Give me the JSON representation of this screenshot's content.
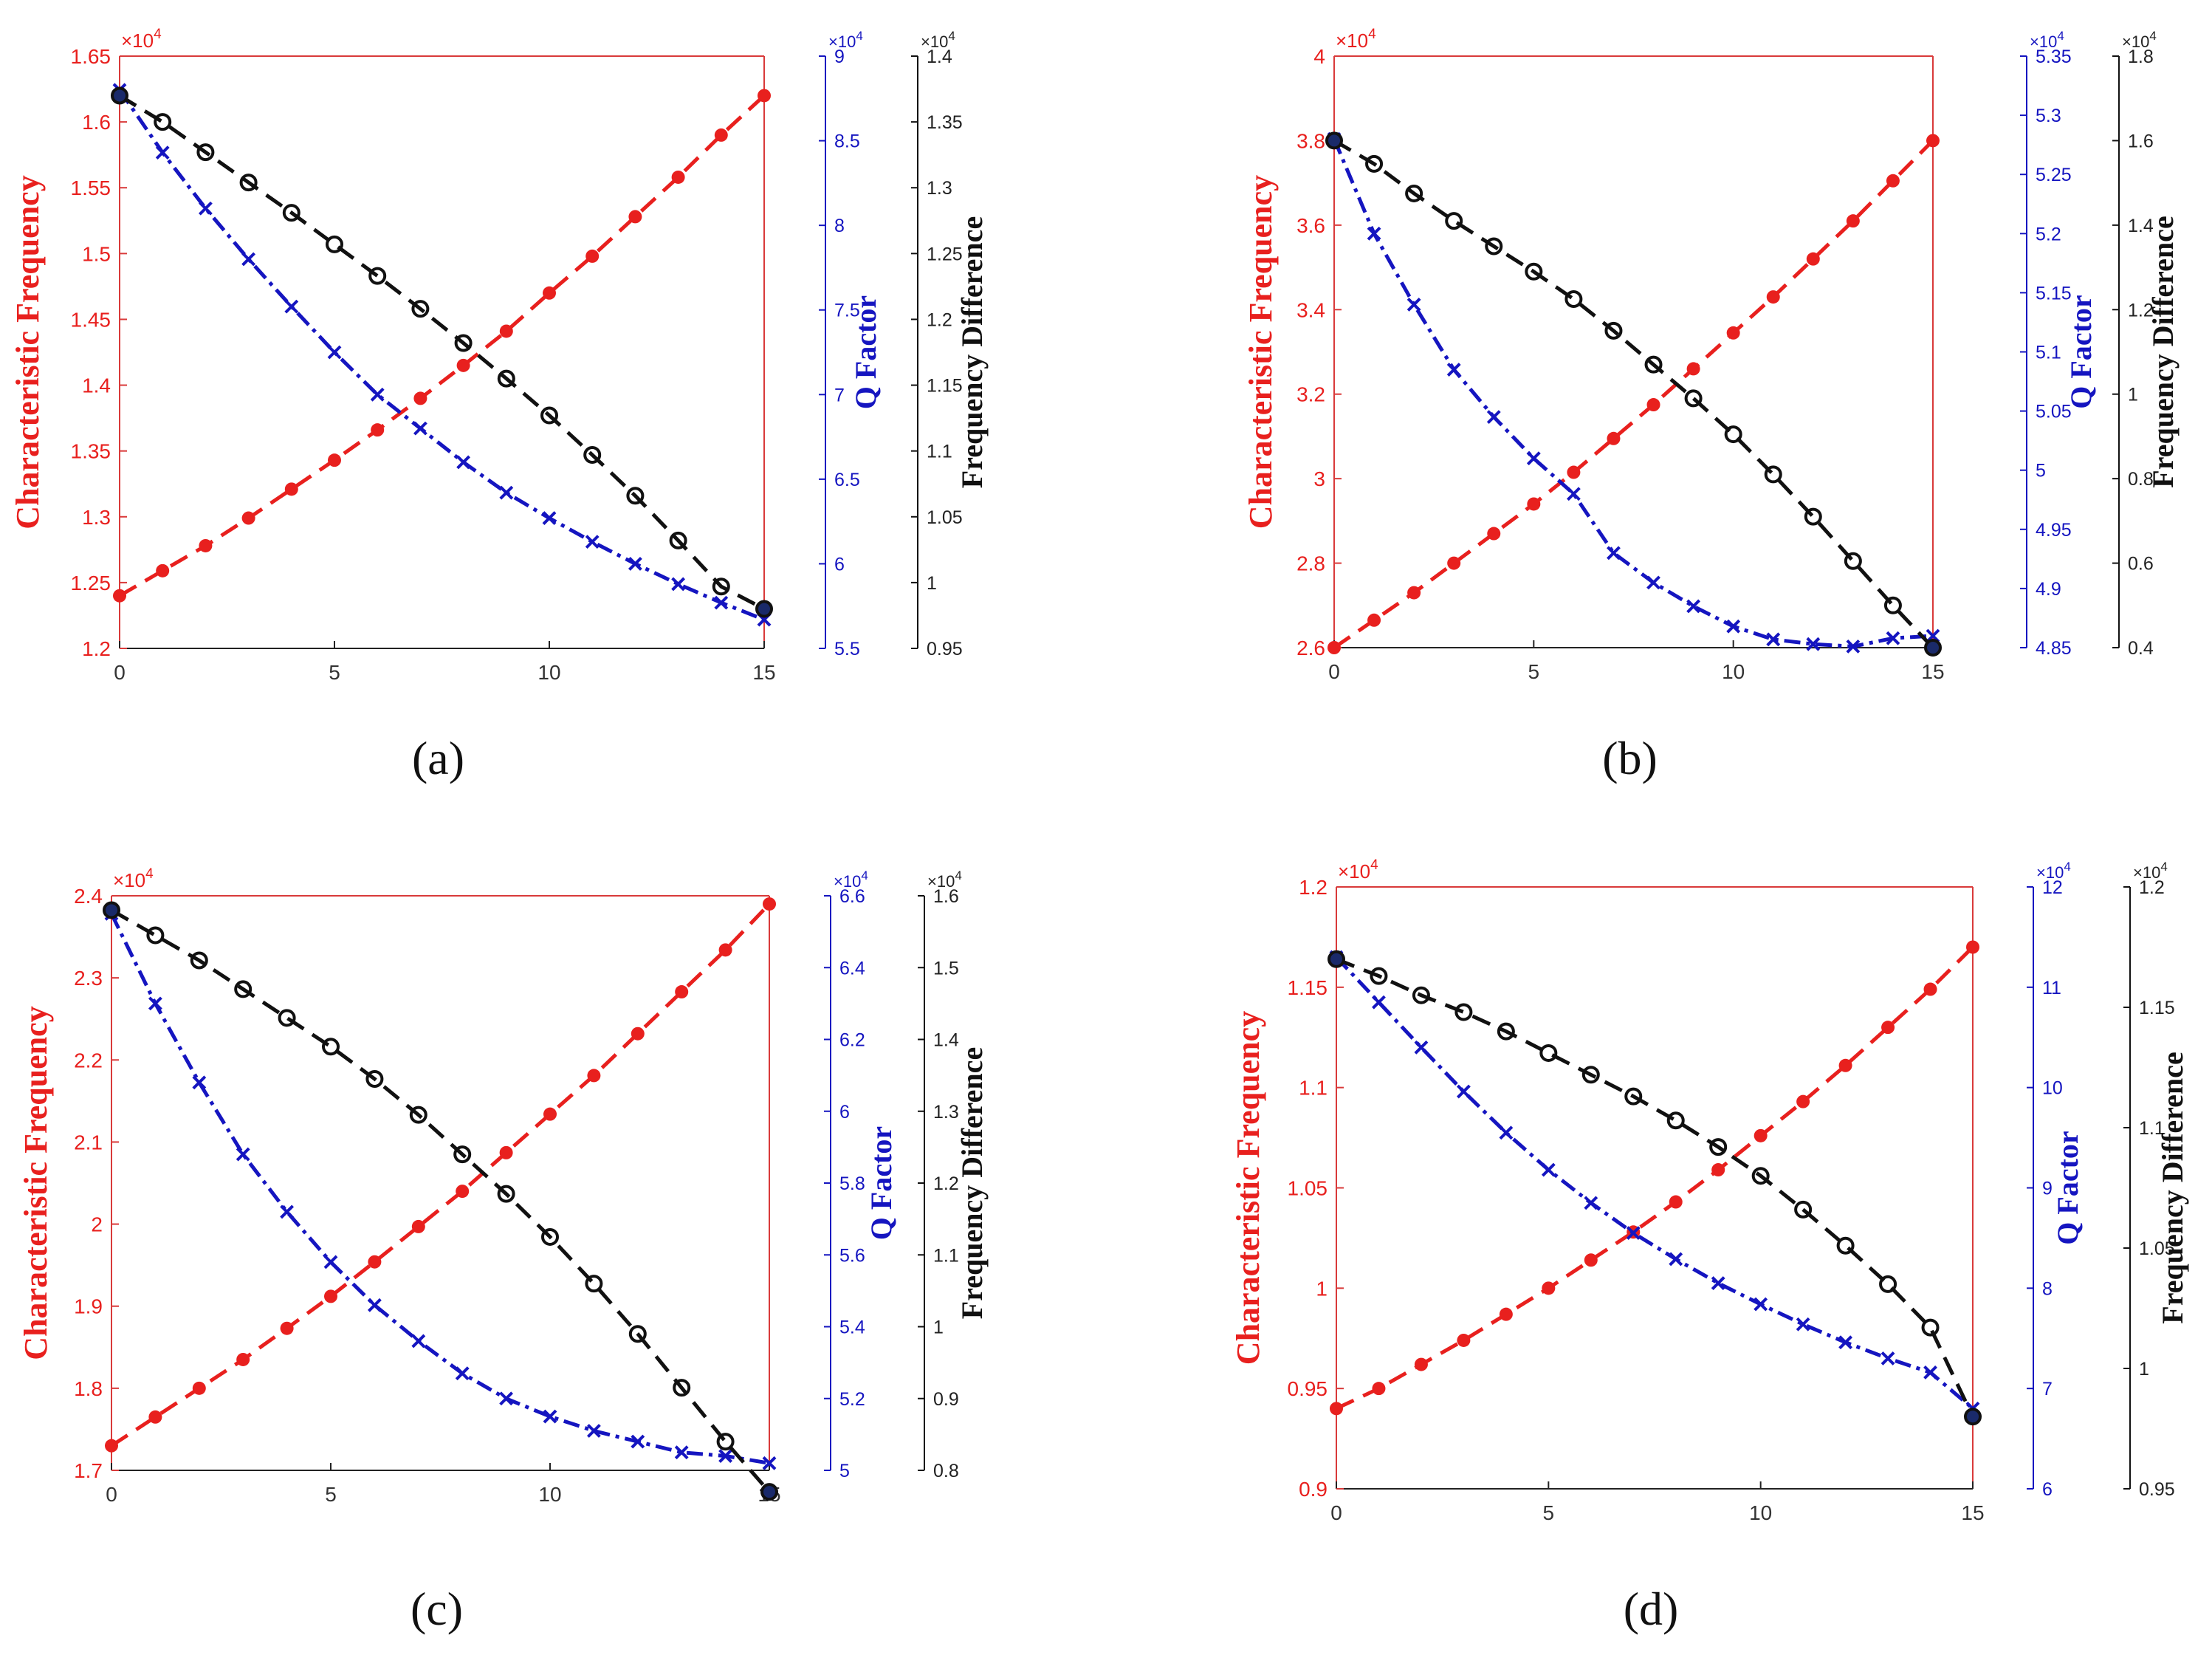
{
  "figure": {
    "colors": {
      "characteristic": "#e8201e",
      "q_factor": "#1515c0",
      "difference": "#111111",
      "frame": "#d93a3a"
    }
  },
  "chart_data": [
    {
      "type": "line",
      "panel_label": "(a)",
      "x": [
        0,
        1,
        2,
        3,
        4,
        5,
        6,
        7,
        8,
        9,
        10,
        11,
        12,
        13,
        14,
        15
      ],
      "x_ticks": [
        "0",
        "5",
        "10",
        "15"
      ],
      "axes": {
        "characteristic": {
          "label": "Characteristic Frequency",
          "exponent": "×10",
          "exponent_power": "4",
          "ylim": [
            1.2,
            1.65
          ],
          "ticks": [
            "1.2",
            "1.25",
            "1.3",
            "1.35",
            "1.4",
            "1.45",
            "1.5",
            "1.55",
            "1.6",
            "1.65"
          ]
        },
        "q_factor": {
          "label": "Q Factor",
          "exponent": "×10",
          "exponent_power": "4",
          "ylim": [
            5.5,
            9
          ],
          "ticks": [
            "5.5",
            "6",
            "6.5",
            "7",
            "7.5",
            "8",
            "8.5",
            "9"
          ]
        },
        "difference": {
          "label": "Frequency Difference",
          "exponent": "×10",
          "exponent_power": "4",
          "ylim": [
            0.95,
            1.4
          ],
          "ticks": [
            "0.95",
            "1",
            "1.05",
            "1.1",
            "1.15",
            "1.2",
            "1.25",
            "1.3",
            "1.35",
            "1.4"
          ]
        }
      },
      "series": [
        {
          "name": "Characteristic Frequency",
          "axis": "characteristic",
          "values": [
            1.24,
            1.259,
            1.278,
            1.299,
            1.321,
            1.343,
            1.366,
            1.39,
            1.415,
            1.441,
            1.47,
            1.498,
            1.528,
            1.558,
            1.59,
            1.62
          ]
        },
        {
          "name": "Q Factor",
          "axis": "q_factor",
          "values": [
            8.8,
            8.43,
            8.1,
            7.8,
            7.52,
            7.25,
            7.0,
            6.8,
            6.6,
            6.42,
            6.27,
            6.13,
            6.0,
            5.88,
            5.77,
            5.67
          ]
        },
        {
          "name": "Frequency Difference",
          "axis": "difference",
          "values": [
            1.37,
            1.35,
            1.327,
            1.304,
            1.281,
            1.257,
            1.233,
            1.208,
            1.182,
            1.155,
            1.127,
            1.097,
            1.066,
            1.032,
            0.997,
            0.98
          ]
        }
      ]
    },
    {
      "type": "line",
      "panel_label": "(b)",
      "x": [
        0,
        1,
        2,
        3,
        4,
        5,
        6,
        7,
        8,
        9,
        10,
        11,
        12,
        13,
        14,
        15
      ],
      "x_ticks": [
        "0",
        "5",
        "10",
        "15"
      ],
      "axes": {
        "characteristic": {
          "label": "Characteristic Frequency",
          "exponent": "×10",
          "exponent_power": "4",
          "ylim": [
            2.6,
            4.0
          ],
          "ticks": [
            "2.6",
            "2.8",
            "3",
            "3.2",
            "3.4",
            "3.6",
            "3.8",
            "4"
          ]
        },
        "q_factor": {
          "label": "Q Factor",
          "exponent": "×10",
          "exponent_power": "4",
          "ylim": [
            4.85,
            5.35
          ],
          "ticks": [
            "4.85",
            "4.9",
            "4.95",
            "5",
            "5.05",
            "5.1",
            "5.15",
            "5.2",
            "5.25",
            "5.3",
            "5.35"
          ]
        },
        "difference": {
          "label": "Frequency Difference",
          "exponent": "×10",
          "exponent_power": "4",
          "ylim": [
            0.4,
            1.8
          ],
          "ticks": [
            "0.4",
            "0.6",
            "0.8",
            "1",
            "1.2",
            "1.4",
            "1.6",
            "1.8"
          ]
        }
      },
      "series": [
        {
          "name": "Characteristic Frequency",
          "axis": "characteristic",
          "values": [
            2.6,
            2.665,
            2.73,
            2.8,
            2.87,
            2.94,
            3.015,
            3.095,
            3.175,
            3.26,
            3.345,
            3.43,
            3.52,
            3.61,
            3.705,
            3.8
          ]
        },
        {
          "name": "Q Factor",
          "axis": "q_factor",
          "values": [
            5.28,
            5.2,
            5.14,
            5.085,
            5.045,
            5.01,
            4.98,
            4.93,
            4.905,
            4.885,
            4.868,
            4.857,
            4.853,
            4.851,
            4.858,
            4.86
          ]
        },
        {
          "name": "Frequency Difference",
          "axis": "difference",
          "values": [
            1.6,
            1.545,
            1.475,
            1.41,
            1.35,
            1.29,
            1.225,
            1.15,
            1.07,
            0.99,
            0.905,
            0.81,
            0.71,
            0.605,
            0.5,
            0.4
          ]
        }
      ]
    },
    {
      "type": "line",
      "panel_label": "(c)",
      "x": [
        0,
        1,
        2,
        3,
        4,
        5,
        6,
        7,
        8,
        9,
        10,
        11,
        12,
        13,
        14,
        15
      ],
      "x_ticks": [
        "0",
        "5",
        "10",
        "15"
      ],
      "axes": {
        "characteristic": {
          "label": "Characteristic Frequency",
          "exponent": "×10",
          "exponent_power": "4",
          "ylim": [
            1.7,
            2.4
          ],
          "ticks": [
            "1.7",
            "1.8",
            "1.9",
            "2",
            "2.1",
            "2.2",
            "2.3",
            "2.4"
          ]
        },
        "q_factor": {
          "label": "Q Factor",
          "exponent": "×10",
          "exponent_power": "4",
          "ylim": [
            5,
            6.6
          ],
          "ticks": [
            "5",
            "5.2",
            "5.4",
            "5.6",
            "5.8",
            "6",
            "6.2",
            "6.4",
            "6.6"
          ]
        },
        "difference": {
          "label": "Frequency Difference",
          "exponent": "×10",
          "exponent_power": "4",
          "ylim": [
            0.8,
            1.6
          ],
          "ticks": [
            "0.8",
            "0.9",
            "1",
            "1.1",
            "1.2",
            "1.3",
            "1.4",
            "1.5",
            "1.6"
          ]
        }
      },
      "series": [
        {
          "name": "Characteristic Frequency",
          "axis": "characteristic",
          "values": [
            1.73,
            1.765,
            1.8,
            1.835,
            1.873,
            1.912,
            1.954,
            1.997,
            2.04,
            2.087,
            2.134,
            2.181,
            2.232,
            2.283,
            2.334,
            2.39
          ]
        },
        {
          "name": "Q Factor",
          "axis": "q_factor",
          "values": [
            6.55,
            6.3,
            6.08,
            5.88,
            5.72,
            5.58,
            5.46,
            5.36,
            5.27,
            5.2,
            5.15,
            5.11,
            5.08,
            5.05,
            5.04,
            5.02
          ]
        },
        {
          "name": "Frequency Difference",
          "axis": "difference",
          "values": [
            1.58,
            1.545,
            1.51,
            1.47,
            1.43,
            1.39,
            1.345,
            1.295,
            1.24,
            1.185,
            1.125,
            1.06,
            0.99,
            0.915,
            0.84,
            0.77
          ]
        }
      ]
    },
    {
      "type": "line",
      "panel_label": "(d)",
      "x": [
        0,
        1,
        2,
        3,
        4,
        5,
        6,
        7,
        8,
        9,
        10,
        11,
        12,
        13,
        14,
        15
      ],
      "x_ticks": [
        "0",
        "5",
        "10",
        "15"
      ],
      "axes": {
        "characteristic": {
          "label": "Characteristic Frequency",
          "exponent": "×10",
          "exponent_power": "4",
          "ylim": [
            0.9,
            1.2
          ],
          "ticks": [
            "0.9",
            "0.95",
            "1",
            "1.05",
            "1.1",
            "1.15",
            "1.2"
          ]
        },
        "q_factor": {
          "label": "Q Factor",
          "exponent": "×10",
          "exponent_power": "4",
          "ylim": [
            6,
            12
          ],
          "ticks": [
            "6",
            "7",
            "8",
            "9",
            "10",
            "11",
            "12"
          ]
        },
        "difference": {
          "label": "Frequency Difference",
          "exponent": "×10",
          "exponent_power": "4",
          "ylim": [
            0.95,
            1.2
          ],
          "ticks": [
            "0.95",
            "1",
            "1.05",
            "1.1",
            "1.15",
            "1.2"
          ]
        }
      },
      "series": [
        {
          "name": "Characteristic Frequency",
          "axis": "characteristic",
          "values": [
            0.94,
            0.95,
            0.962,
            0.974,
            0.987,
            1.0,
            1.014,
            1.028,
            1.043,
            1.059,
            1.076,
            1.093,
            1.111,
            1.13,
            1.149,
            1.17
          ]
        },
        {
          "name": "Q Factor",
          "axis": "q_factor",
          "values": [
            11.3,
            10.85,
            10.4,
            9.96,
            9.55,
            9.18,
            8.85,
            8.55,
            8.29,
            8.05,
            7.84,
            7.64,
            7.46,
            7.3,
            7.16,
            6.8
          ]
        },
        {
          "name": "Frequency Difference",
          "axis": "difference",
          "values": [
            1.17,
            1.163,
            1.155,
            1.148,
            1.14,
            1.131,
            1.122,
            1.113,
            1.103,
            1.092,
            1.08,
            1.066,
            1.051,
            1.035,
            1.017,
            0.98
          ]
        }
      ]
    }
  ]
}
